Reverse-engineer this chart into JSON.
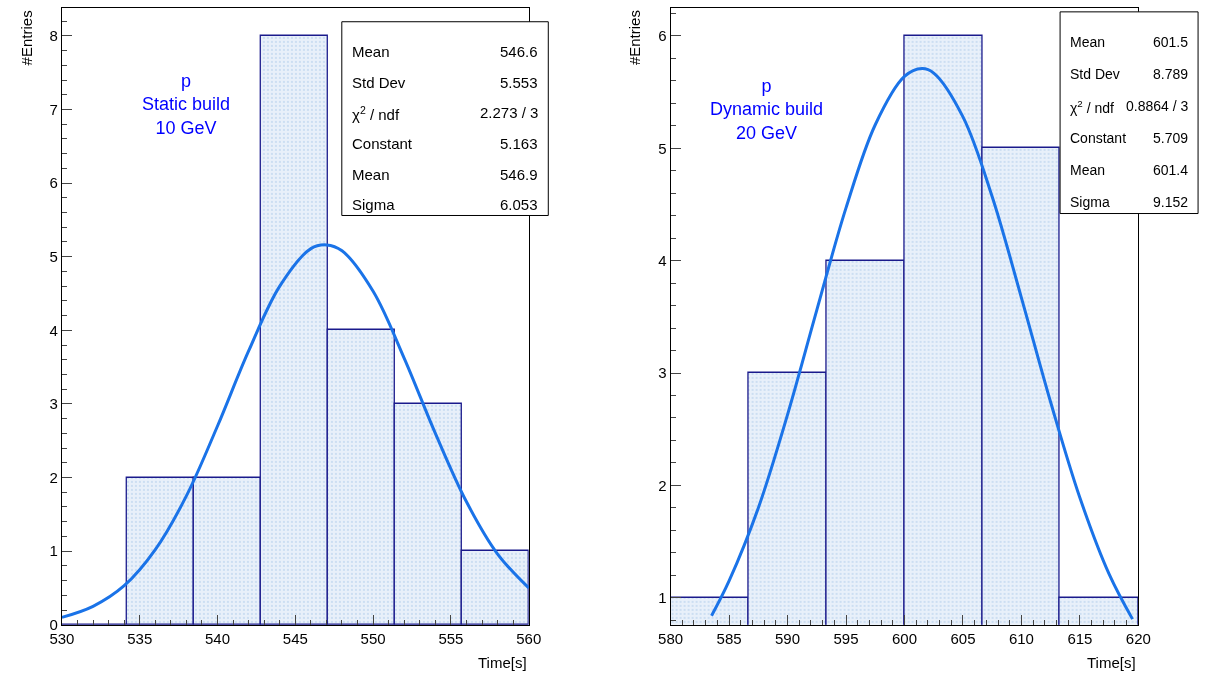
{
  "chart_data": [
    {
      "type": "histogram",
      "xlabel": "Time[s]",
      "ylabel": "#Entries",
      "xlim": [
        530,
        560
      ],
      "xticks": [
        530,
        535,
        540,
        545,
        550,
        555,
        560
      ],
      "ylim": [
        0,
        8.38
      ],
      "yticks": [
        0,
        1,
        2,
        3,
        4,
        5,
        6,
        7,
        8
      ],
      "legend": false,
      "annotations": [
        "p\nStatic build\n10 GeV",
        "Mean",
        "546.6",
        "Std Dev",
        "5.553",
        "χ$^{2}$ / ndf",
        "2.273 / 3",
        "Constant",
        "5.163",
        "Mean",
        "546.9",
        "Sigma",
        "6.053"
      ],
      "series": [
        {
          "type": "histogram",
          "color": "#1a1a8c",
          "bins": [
            529.9,
            534.2,
            538.5,
            542.8,
            547.1,
            551.4,
            555.7,
            560.0
          ],
          "values": [
            0,
            2,
            2,
            8,
            4,
            3,
            1
          ]
        },
        {
          "type": "line",
          "color": "#1a73e8",
          "x": [
            530,
            532,
            534,
            536,
            538,
            540,
            542,
            544,
            546,
            547,
            548,
            550,
            552,
            554,
            556,
            558,
            560
          ],
          "values": [
            0.1,
            0.25,
            0.53,
            1.02,
            1.75,
            2.7,
            3.72,
            4.6,
            5.11,
            5.16,
            5.08,
            4.53,
            3.62,
            2.6,
            1.67,
            0.96,
            0.5
          ]
        }
      ]
    },
    {
      "type": "histogram",
      "xlabel": "Time[s]",
      "ylabel": "#Entries",
      "xlim": [
        580,
        620
      ],
      "xticks": [
        580,
        585,
        590,
        595,
        600,
        605,
        610,
        615,
        620
      ],
      "ylim": [
        0.76,
        6.25
      ],
      "yticks": [
        1,
        2,
        3,
        4,
        5,
        6
      ],
      "legend": false,
      "annotations": [
        "p\nDynamic build\n20 GeV",
        "Mean",
        "601.5",
        "Std Dev",
        "8.789",
        "χ$^{2}$ / ndf",
        "0.8864 / 3",
        "Constant",
        "5.709",
        "Mean",
        "601.4",
        "Sigma",
        "9.152"
      ],
      "series": [
        {
          "type": "histogram",
          "color": "#1a1a8c",
          "bins": [
            580,
            586.7,
            593.3,
            600,
            606.7,
            613.3,
            620
          ],
          "values": [
            1,
            3,
            4,
            6,
            5,
            1
          ]
        },
        {
          "type": "line",
          "color": "#1a73e8",
          "x": [
            583.5,
            585,
            587.5,
            590,
            592.5,
            595,
            597.5,
            600,
            601.5,
            602.5,
            605,
            607.5,
            610,
            612.5,
            615,
            617.5,
            619.5
          ],
          "values": [
            0.84,
            1.15,
            1.8,
            2.63,
            3.56,
            4.47,
            5.21,
            5.64,
            5.71,
            5.67,
            5.28,
            4.57,
            3.67,
            2.74,
            1.89,
            1.21,
            0.81
          ]
        }
      ]
    }
  ]
}
